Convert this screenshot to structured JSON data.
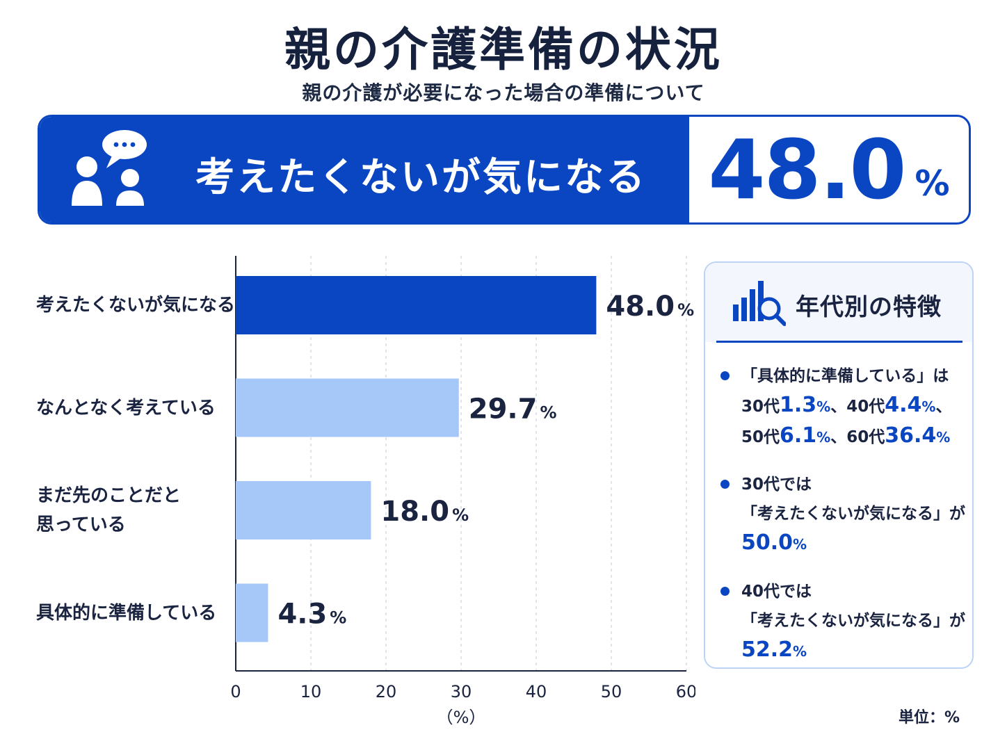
{
  "title": "親の介護準備の状況",
  "subtitle": "親の介護が必要になった場合の準備について",
  "highlight": {
    "icon": "people-chat-icon",
    "label": "考えたくないが気になる",
    "value": "48.0",
    "unit": "%"
  },
  "chart_data": {
    "type": "bar",
    "orientation": "horizontal",
    "categories": [
      "考えたくないが気になる",
      "なんとなく考えている",
      "まだ先のことだと\n思っている",
      "具体的に準備している"
    ],
    "values": [
      48.0,
      29.7,
      18.0,
      4.3
    ],
    "value_labels": [
      "48.0",
      "29.7",
      "18.0",
      "4.3"
    ],
    "value_unit": "%",
    "xlim": [
      0,
      60
    ],
    "xticks": [
      0,
      10,
      20,
      30,
      40,
      50,
      60
    ],
    "xlabel": "（%）",
    "grid": true,
    "colors": {
      "highlight": "#0b46c2",
      "default": "#a5c8f8"
    }
  },
  "unit_note": "単位：%",
  "panel": {
    "icon": "bar-chart-search-icon",
    "title": "年代別の特徴",
    "notes": [
      {
        "lines": [
          [
            {
              "t": "「具体的に準備している」は"
            }
          ],
          [
            {
              "t": "30代"
            },
            {
              "v": "1.3"
            },
            {
              "u": "%"
            },
            {
              "t": "、40代"
            },
            {
              "v": "4.4"
            },
            {
              "u": "%"
            },
            {
              "t": "、"
            }
          ],
          [
            {
              "t": "50代"
            },
            {
              "v": "6.1"
            },
            {
              "u": "%"
            },
            {
              "t": "、60代"
            },
            {
              "v": "36.4"
            },
            {
              "u": "%"
            }
          ]
        ]
      },
      {
        "lines": [
          [
            {
              "t": "30代では"
            }
          ],
          [
            {
              "t": "「考えたくないが気になる」が"
            }
          ],
          [
            {
              "v": "50.0"
            },
            {
              "u": "%"
            }
          ]
        ]
      },
      {
        "lines": [
          [
            {
              "t": "40代では"
            }
          ],
          [
            {
              "t": "「考えたくないが気になる」が"
            }
          ],
          [
            {
              "v": "52.2"
            },
            {
              "u": "%"
            }
          ]
        ]
      }
    ]
  }
}
